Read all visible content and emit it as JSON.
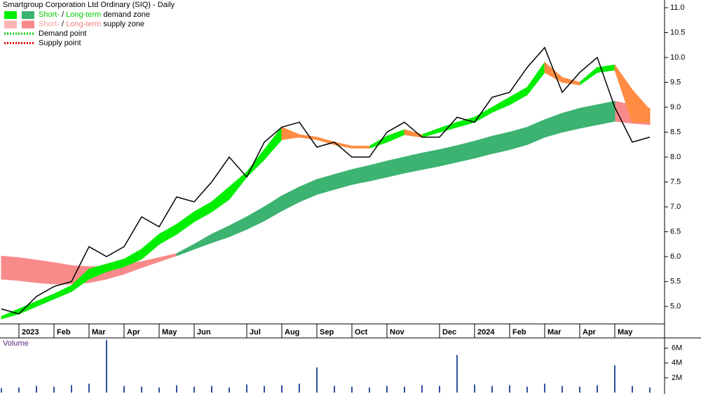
{
  "chart_data": {
    "type": "line",
    "title": "Smartgroup Corporation Ltd Ordinary (SIQ) - Daily",
    "categories": [
      null,
      "2023",
      null,
      "Feb",
      null,
      "Mar",
      null,
      "Apr",
      null,
      "May",
      null,
      "Jun",
      null,
      null,
      "Jul",
      null,
      "Aug",
      null,
      "Sep",
      null,
      "Oct",
      null,
      "Nov",
      null,
      null,
      "Dec",
      null,
      "2024",
      null,
      "Feb",
      null,
      "Mar",
      null,
      "Apr",
      null,
      "May",
      null,
      null
    ],
    "series": [
      {
        "color": "#000000",
        "values": [
          4.95,
          4.85,
          5.2,
          5.4,
          5.5,
          6.2,
          6.0,
          6.2,
          6.8,
          6.6,
          7.2,
          7.1,
          7.5,
          8.0,
          7.6,
          8.3,
          8.6,
          8.7,
          8.2,
          8.3,
          8.0,
          8.0,
          8.5,
          8.7,
          8.4,
          8.4,
          8.8,
          8.7,
          9.2,
          9.3,
          9.8,
          10.2,
          9.3,
          9.7,
          10.0,
          9.0,
          8.3,
          8.4
        ]
      }
    ],
    "bands": [
      {
        "color": "#f88a8a",
        "lower": [
          5.55,
          5.52,
          5.48,
          5.45,
          5.45,
          5.48,
          5.55,
          5.65,
          5.78,
          5.9,
          6.02,
          null,
          null,
          null,
          null,
          null,
          null,
          null,
          null,
          null,
          null,
          null,
          null,
          null,
          null,
          null,
          null,
          null,
          null,
          null,
          null,
          null,
          null,
          null,
          null,
          8.72,
          8.68,
          8.65
        ],
        "upper": [
          6.01,
          5.98,
          5.93,
          5.88,
          5.82,
          5.8,
          5.8,
          5.85,
          5.9,
          5.98,
          6.06,
          null,
          null,
          null,
          null,
          null,
          null,
          null,
          null,
          null,
          null,
          null,
          null,
          null,
          null,
          null,
          null,
          null,
          null,
          null,
          null,
          null,
          null,
          null,
          null,
          9.12,
          9.05,
          8.98
        ]
      },
      {
        "color": "#3cb371",
        "lower": [
          null,
          null,
          null,
          null,
          null,
          null,
          null,
          null,
          null,
          null,
          6.02,
          6.15,
          6.28,
          6.4,
          6.55,
          6.72,
          6.92,
          7.1,
          7.25,
          7.35,
          7.45,
          7.52,
          7.6,
          7.68,
          7.75,
          7.82,
          7.9,
          7.98,
          8.07,
          8.15,
          8.25,
          8.4,
          8.5,
          8.58,
          8.65,
          8.72,
          null,
          null
        ],
        "upper": [
          null,
          null,
          null,
          null,
          null,
          null,
          null,
          null,
          null,
          null,
          6.06,
          6.25,
          6.45,
          6.62,
          6.8,
          7.0,
          7.22,
          7.4,
          7.55,
          7.65,
          7.75,
          7.83,
          7.92,
          8.0,
          8.08,
          8.15,
          8.23,
          8.32,
          8.42,
          8.5,
          8.6,
          8.75,
          8.88,
          8.98,
          9.05,
          9.12,
          null,
          null
        ]
      },
      {
        "color": "#00ee00",
        "lower": [
          4.75,
          4.85,
          5.0,
          5.15,
          5.3,
          5.55,
          5.7,
          5.8,
          5.95,
          6.25,
          6.45,
          6.7,
          6.9,
          7.15,
          7.6,
          7.95,
          8.35,
          null,
          null,
          null,
          null,
          8.18,
          8.3,
          8.45,
          8.4,
          8.5,
          8.6,
          8.7,
          8.9,
          9.05,
          9.25,
          9.7,
          null,
          9.45,
          9.7,
          9.75,
          null,
          null
        ],
        "upper": [
          4.8,
          4.95,
          5.1,
          5.25,
          5.42,
          5.75,
          5.85,
          5.95,
          6.15,
          6.45,
          6.65,
          6.9,
          7.1,
          7.4,
          7.7,
          8.15,
          8.6,
          null,
          null,
          null,
          null,
          8.22,
          8.42,
          8.55,
          8.45,
          8.58,
          8.7,
          8.8,
          9.0,
          9.2,
          9.4,
          9.9,
          null,
          9.5,
          9.8,
          9.85,
          null,
          null
        ]
      },
      {
        "color": "#ff8c42",
        "lower": [
          null,
          null,
          null,
          null,
          null,
          null,
          null,
          null,
          null,
          null,
          null,
          null,
          null,
          null,
          null,
          null,
          8.35,
          8.4,
          8.35,
          8.25,
          8.18,
          8.18,
          null,
          8.45,
          8.4,
          null,
          null,
          null,
          null,
          null,
          null,
          9.7,
          9.5,
          9.45,
          null,
          9.75,
          8.7,
          8.7
        ],
        "upper": [
          null,
          null,
          null,
          null,
          null,
          null,
          null,
          null,
          null,
          null,
          null,
          null,
          null,
          null,
          null,
          null,
          8.6,
          8.45,
          8.4,
          8.3,
          8.22,
          8.22,
          null,
          8.55,
          8.45,
          null,
          null,
          null,
          null,
          null,
          null,
          9.9,
          9.6,
          9.5,
          null,
          9.85,
          9.35,
          8.95
        ]
      }
    ],
    "ylim": [
      4.79,
      11.155
    ],
    "yticks": [
      {
        "value": 5,
        "label": "5.0"
      },
      {
        "value": 5.5,
        "label": "5.5"
      },
      {
        "value": 6,
        "label": "6.0"
      },
      {
        "value": 6.5,
        "label": "6.5"
      },
      {
        "value": 7,
        "label": "7.0"
      },
      {
        "value": 7.5,
        "label": "7.5"
      },
      {
        "value": 8,
        "label": "8.0"
      },
      {
        "value": 8.5,
        "label": "8.5"
      },
      {
        "value": 9,
        "label": "9.0"
      },
      {
        "value": 9.5,
        "label": "9.5"
      },
      {
        "value": 10,
        "label": "10.0"
      },
      {
        "value": 10.5,
        "label": "10.5"
      },
      {
        "value": 11,
        "label": "11.0"
      }
    ],
    "legend": [
      {
        "swatches": [
          "#00ee00",
          "#3cb371"
        ],
        "parts": [
          {
            "text": "Short-",
            "color": "#00cc00"
          },
          {
            "text": " / "
          },
          {
            "text": "Long-term",
            "color": "#00cc00"
          },
          {
            "text": " demand zone"
          }
        ]
      },
      {
        "swatches": [
          "#ffb3b3",
          "#f88a8a"
        ],
        "parts": [
          {
            "text": "Short-",
            "color": "#f4a0a0"
          },
          {
            "text": " / "
          },
          {
            "text": "Long-term",
            "color": "#f08080"
          },
          {
            "text": " supply zone"
          }
        ]
      },
      {
        "line": "#00cc00",
        "parts": [
          {
            "text": "Demand point"
          }
        ]
      },
      {
        "line": "#dd0000",
        "parts": [
          {
            "text": "Supply point"
          }
        ]
      }
    ],
    "volume": {
      "title": "Volume",
      "color": "#3050a0",
      "values": [
        600000,
        700000,
        900000,
        800000,
        1000000,
        1200000,
        7100000,
        900000,
        800000,
        700000,
        1000000,
        800000,
        900000,
        700000,
        1100000,
        900000,
        1000000,
        1200000,
        3400000,
        900000,
        800000,
        700000,
        900000,
        800000,
        1000000,
        900000,
        5100000,
        1100000,
        900000,
        1000000,
        800000,
        1200000,
        900000,
        800000,
        1000000,
        3700000,
        900000,
        700000
      ],
      "ylim": [
        0,
        7300000
      ],
      "yticks": [
        {
          "value": 2000000,
          "label": "2M"
        },
        {
          "value": 4000000,
          "label": "4M"
        },
        {
          "value": 6000000,
          "label": "6M"
        }
      ]
    }
  }
}
